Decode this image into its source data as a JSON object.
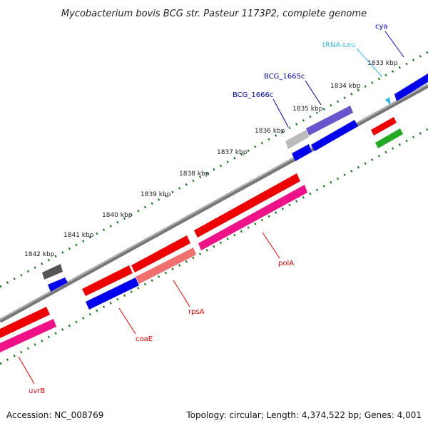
{
  "title": "Mycobacterium bovis BCG str. Pasteur 1173P2, complete genome",
  "footer": {
    "accession": "Accession: NC_008769",
    "topology": "Topology: circular; Length: 4,374,522 bp; Genes: 4,001"
  },
  "colors": {
    "forward_cds": "#0000ee",
    "reverse_cds": "#ee0000",
    "rrna_trna": "#33bbee",
    "gc_skew_positive": "#22aa22",
    "pseudo_gray": "#aaaaaa",
    "dark_gray": "#444444",
    "magenta": "#ee1188",
    "salmon": "#f07070",
    "violet": "#6655cc",
    "backbone": "#888888",
    "tick_green": "#117711"
  },
  "ticks": [
    {
      "label": "1833 kbp"
    },
    {
      "label": "1834 kbp"
    },
    {
      "label": "1835 kbp"
    },
    {
      "label": "1836 kbp"
    },
    {
      "label": "1837 kbp"
    },
    {
      "label": "1838 kbp"
    },
    {
      "label": "1839 kbp"
    },
    {
      "label": "1840 kbp"
    },
    {
      "label": "1841 kbp"
    },
    {
      "label": "1842 kbp"
    }
  ],
  "gene_labels": {
    "cya": "cya",
    "trna_leu": "tRNA-Leu",
    "bcg_1665c": "BCG_1665c",
    "bcg_1666c": "BCG_1666c",
    "pola": "polA",
    "rpsa": "rpsA",
    "coae": "coaE",
    "uvrb": "uvrB"
  }
}
